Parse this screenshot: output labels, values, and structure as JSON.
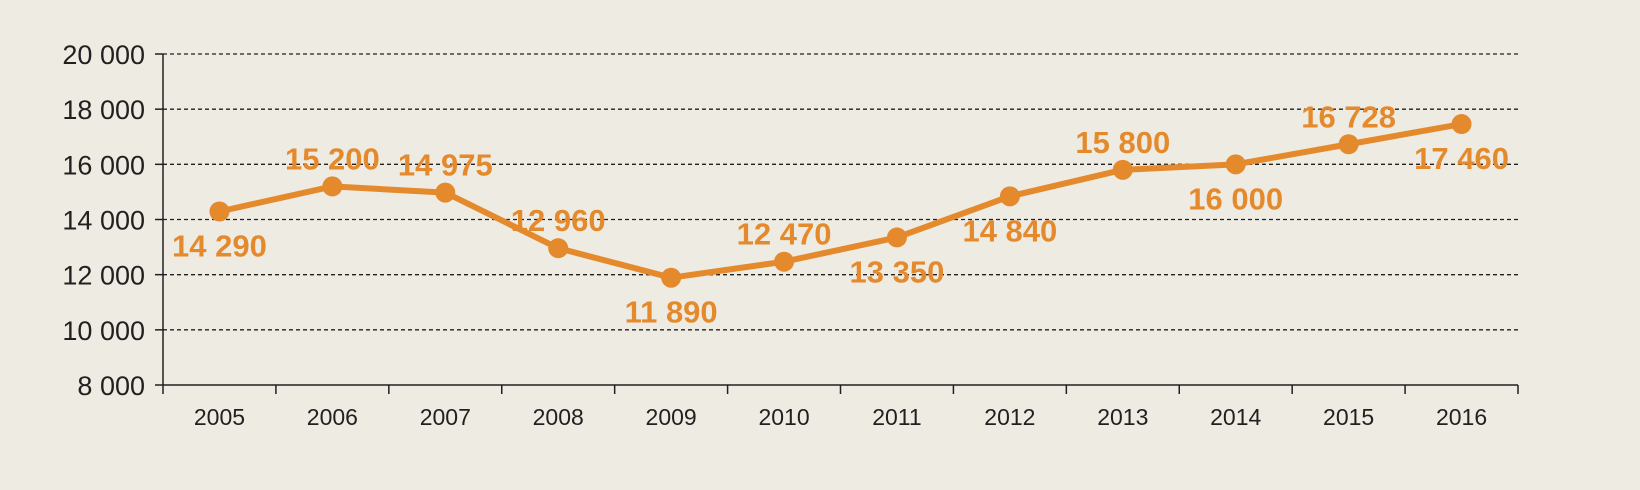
{
  "chart_data": {
    "type": "line",
    "categories": [
      "2005",
      "2006",
      "2007",
      "2008",
      "2009",
      "2010",
      "2011",
      "2012",
      "2013",
      "2014",
      "2015",
      "2016"
    ],
    "series": [
      {
        "values": [
          14290,
          15200,
          14975,
          12960,
          11890,
          12470,
          13350,
          14840,
          15800,
          16000,
          16728,
          17460
        ],
        "data_labels": [
          "14 290",
          "15 200",
          "14 975",
          "12 960",
          "11 890",
          "12 470",
          "13 350",
          "14 840",
          "15 800",
          "16 000",
          "16 728",
          "17 460"
        ]
      }
    ],
    "ylim": [
      8000,
      20000
    ],
    "yticks": [
      8000,
      10000,
      12000,
      14000,
      16000,
      18000,
      20000
    ],
    "ytick_labels": [
      "8 000",
      "10 000",
      "12 000",
      "14 000",
      "16 000",
      "18 000",
      "20 000"
    ],
    "title": "",
    "xlabel": "",
    "ylabel": "",
    "grid": "horizontal-dashed",
    "legend": "none",
    "colors": {
      "background": "#eeebe3",
      "series": "#e48a2c",
      "axis": "#231f20",
      "grid": "#231f20"
    }
  }
}
